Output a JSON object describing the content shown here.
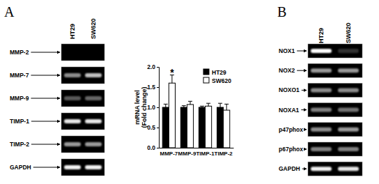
{
  "panels": [
    {
      "label": "A",
      "gel": {
        "lanes": [
          "HT29",
          "SW620"
        ],
        "rows": [
          {
            "name": "MMP-2",
            "intensity": [
              0,
              0
            ]
          },
          {
            "name": "MMP-7",
            "intensity": [
              0.55,
              0.75
            ]
          },
          {
            "name": "MMP-9",
            "intensity": [
              0.35,
              0.4
            ]
          },
          {
            "name": "TIMP-1",
            "intensity": [
              0.9,
              0.9
            ]
          },
          {
            "name": "TIMP-2",
            "intensity": [
              0.6,
              0.6
            ]
          },
          {
            "name": "GAPDH",
            "intensity": [
              0.95,
              0.95
            ]
          }
        ]
      }
    },
    {
      "label": "B",
      "gel": {
        "lanes": [
          "HT29",
          "SW620"
        ],
        "rows": [
          {
            "name": "NOX1",
            "intensity": [
              1,
              0.2
            ]
          },
          {
            "name": "NOX2",
            "intensity": [
              0.6,
              0.6
            ]
          },
          {
            "name": "NOXO1",
            "intensity": [
              0.55,
              0.55
            ]
          },
          {
            "name": "NOXA1",
            "intensity": [
              0.5,
              0.45
            ]
          },
          {
            "name": "p47phox",
            "intensity": [
              0.55,
              0.6
            ]
          },
          {
            "name": "p67phox",
            "intensity": [
              0.5,
              0.5
            ]
          },
          {
            "name": "GAPDH",
            "intensity": [
              0.95,
              0.9
            ]
          }
        ]
      }
    }
  ],
  "chart_data": {
    "type": "bar",
    "y_label": [
      "mRNA level",
      "(Fold change)"
    ],
    "categories": [
      "MMP-7",
      "MMP-9",
      "TIMP-1",
      "TIMP-2"
    ],
    "series": [
      {
        "name": "HT29",
        "color": "#000000",
        "values": [
          1,
          1,
          1,
          1
        ],
        "errors": [
          0.08,
          0.04,
          0.03,
          0.1
        ]
      },
      {
        "name": "SW620",
        "color": "#ffffff",
        "values": [
          1.6,
          1.07,
          1.03,
          0.93
        ],
        "errors": [
          0.2,
          0.08,
          0.07,
          0.15
        ]
      }
    ],
    "annotations": [
      {
        "text": "*",
        "x": "MMP-7",
        "series": "SW620"
      }
    ],
    "ylim": [
      0,
      2
    ],
    "yticks": [
      {
        "value": 0,
        "label": "0.0"
      },
      {
        "value": 0.5,
        "label": "0.5"
      },
      {
        "value": 1,
        "label": "1.0"
      },
      {
        "value": 1.5,
        "label": "1.5"
      },
      {
        "value": 2,
        "label": "2.0"
      }
    ],
    "grid": false,
    "legend": "top-right"
  }
}
